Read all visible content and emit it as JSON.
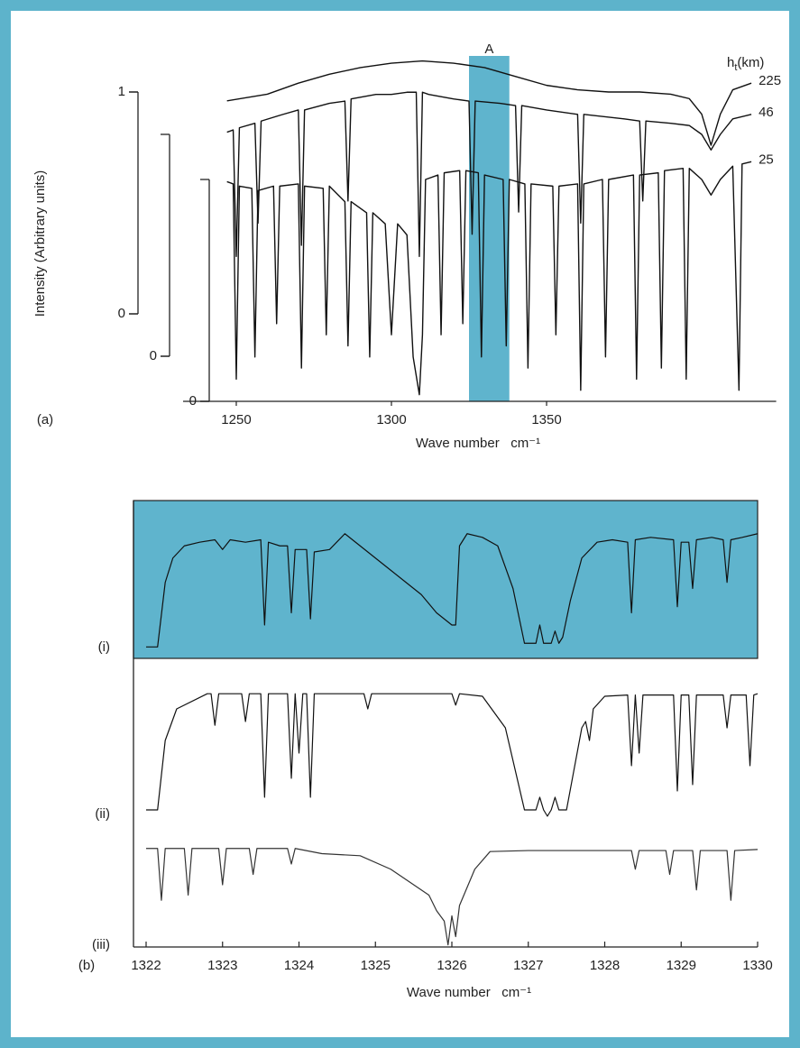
{
  "chart_data": [
    {
      "type": "line",
      "panel_label": "(a)",
      "ylabel": "Intensity (Arbitrary units)",
      "xlabel": "Wave number   cm⁻¹",
      "xlim": [
        1233,
        1424
      ],
      "xticks": [
        1250,
        1300,
        1350
      ],
      "yaxes": [
        {
          "ylim": [
            0,
            1
          ],
          "yticks": [
            0,
            1
          ]
        },
        {
          "ylim": [
            0,
            1
          ],
          "yticks": [
            0
          ]
        },
        {
          "ylim": [
            0,
            1
          ],
          "yticks": [
            0
          ]
        }
      ],
      "highlight": {
        "label": "A",
        "range": [
          1325,
          1338
        ],
        "color": "#5fb4cd"
      },
      "legend_title": {
        "text": "h",
        "sub": "t",
        "unit": "(km)"
      },
      "series": [
        {
          "name": "225",
          "color": "#111111",
          "axis": 0,
          "x": [
            1247,
            1260,
            1270,
            1280,
            1290,
            1300,
            1310,
            1320,
            1330,
            1340,
            1350,
            1360,
            1370,
            1380,
            1390,
            1396,
            1400,
            1403,
            1406,
            1410,
            1416
          ],
          "values": [
            0.96,
            0.99,
            1.04,
            1.08,
            1.11,
            1.13,
            1.14,
            1.13,
            1.11,
            1.07,
            1.03,
            1.01,
            1.0,
            1.0,
            0.99,
            0.97,
            0.9,
            0.76,
            0.9,
            1.01,
            1.04
          ]
        },
        {
          "name": "46",
          "color": "#111111",
          "axis": 1,
          "x": [
            1247,
            1249,
            1250,
            1251,
            1256,
            1257,
            1258,
            1265,
            1270,
            1271,
            1272,
            1280,
            1285,
            1286,
            1287,
            1295,
            1300,
            1305,
            1308,
            1309,
            1310,
            1312,
            1320,
            1325,
            1326,
            1327,
            1335,
            1340,
            1341,
            1342,
            1350,
            1360,
            1361,
            1362,
            1375,
            1380,
            1381,
            1382,
            1390,
            1396,
            1400,
            1403,
            1406,
            1410,
            1416
          ],
          "values": [
            1.01,
            1.02,
            0.45,
            1.03,
            1.05,
            0.6,
            1.06,
            1.09,
            1.11,
            0.5,
            1.11,
            1.14,
            1.15,
            0.7,
            1.16,
            1.18,
            1.18,
            1.19,
            1.19,
            0.45,
            1.19,
            1.18,
            1.16,
            1.15,
            0.55,
            1.15,
            1.14,
            1.13,
            0.65,
            1.13,
            1.11,
            1.09,
            0.6,
            1.09,
            1.07,
            1.06,
            0.7,
            1.06,
            1.05,
            1.04,
            1.0,
            0.93,
            1.0,
            1.07,
            1.09
          ]
        },
        {
          "name": "25",
          "color": "#111111",
          "axis": 2,
          "x": [
            1247,
            1249,
            1250,
            1251,
            1255,
            1256,
            1257,
            1262,
            1263,
            1264,
            1270,
            1271,
            1272,
            1278,
            1279,
            1280,
            1285,
            1286,
            1287,
            1292,
            1293,
            1294,
            1298,
            1300,
            1302,
            1305,
            1307,
            1309,
            1310,
            1311,
            1315,
            1316,
            1317,
            1322,
            1323,
            1324,
            1328,
            1329,
            1330,
            1336,
            1337,
            1338,
            1343,
            1344,
            1345,
            1352,
            1353,
            1354,
            1360,
            1361,
            1362,
            1368,
            1369,
            1370,
            1378,
            1379,
            1380,
            1386,
            1387,
            1388,
            1394,
            1395,
            1396,
            1400,
            1403,
            1406,
            1410,
            1412,
            1413,
            1416
          ],
          "values": [
            0.99,
            0.98,
            0.1,
            0.97,
            0.96,
            0.2,
            0.95,
            0.97,
            0.35,
            0.97,
            0.98,
            0.15,
            0.97,
            0.96,
            0.3,
            0.97,
            0.9,
            0.25,
            0.9,
            0.85,
            0.2,
            0.85,
            0.8,
            0.3,
            0.8,
            0.75,
            0.2,
            0.03,
            0.3,
            1.0,
            1.02,
            0.3,
            1.03,
            1.04,
            0.35,
            1.04,
            1.03,
            0.2,
            1.02,
            1.0,
            0.25,
            1.0,
            0.98,
            0.15,
            0.98,
            0.97,
            0.3,
            0.97,
            0.98,
            0.05,
            0.98,
            1.0,
            0.2,
            1.0,
            1.02,
            0.1,
            1.02,
            1.03,
            0.15,
            1.04,
            1.05,
            0.1,
            1.05,
            1.0,
            0.93,
            1.0,
            1.06,
            0.05,
            1.07,
            1.08
          ]
        }
      ]
    },
    {
      "type": "line",
      "panel_label": "(b)",
      "xlabel": "Wave number   cm⁻¹",
      "xlim": [
        1322,
        1330
      ],
      "xticks": [
        1322,
        1323,
        1324,
        1325,
        1326,
        1327,
        1328,
        1329,
        1330
      ],
      "ylim": [
        0,
        1
      ],
      "series": [
        {
          "name": "(i)",
          "color": "#111111",
          "background": "#5fb4cd",
          "x": [
            1322.0,
            1322.15,
            1322.25,
            1322.35,
            1322.5,
            1322.7,
            1322.9,
            1323.0,
            1323.1,
            1323.3,
            1323.5,
            1323.55,
            1323.6,
            1323.75,
            1323.85,
            1323.9,
            1323.95,
            1324.1,
            1324.15,
            1324.2,
            1324.4,
            1324.6,
            1324.8,
            1325.0,
            1325.2,
            1325.4,
            1325.6,
            1325.8,
            1325.9,
            1326.0,
            1326.05,
            1326.1,
            1326.2,
            1326.4,
            1326.6,
            1326.8,
            1326.95,
            1327.1,
            1327.15,
            1327.2,
            1327.3,
            1327.35,
            1327.4,
            1327.45,
            1327.55,
            1327.7,
            1327.9,
            1328.1,
            1328.3,
            1328.35,
            1328.4,
            1328.6,
            1328.9,
            1328.95,
            1329.0,
            1329.1,
            1329.15,
            1329.2,
            1329.4,
            1329.55,
            1329.6,
            1329.65,
            1329.8,
            1330.0
          ],
          "values": [
            0.02,
            0.02,
            0.55,
            0.75,
            0.85,
            0.88,
            0.9,
            0.82,
            0.9,
            0.88,
            0.9,
            0.2,
            0.88,
            0.85,
            0.85,
            0.3,
            0.82,
            0.82,
            0.25,
            0.8,
            0.82,
            0.95,
            0.85,
            0.75,
            0.65,
            0.55,
            0.45,
            0.3,
            0.25,
            0.2,
            0.2,
            0.85,
            0.95,
            0.92,
            0.85,
            0.5,
            0.05,
            0.05,
            0.2,
            0.05,
            0.05,
            0.15,
            0.05,
            0.1,
            0.4,
            0.75,
            0.88,
            0.9,
            0.88,
            0.3,
            0.9,
            0.92,
            0.9,
            0.35,
            0.88,
            0.88,
            0.5,
            0.9,
            0.92,
            0.9,
            0.55,
            0.9,
            0.92,
            0.95
          ]
        },
        {
          "name": "(ii)",
          "color": "#111111",
          "x": [
            1322.0,
            1322.15,
            1322.25,
            1322.4,
            1322.8,
            1322.85,
            1322.9,
            1322.95,
            1323.25,
            1323.3,
            1323.35,
            1323.5,
            1323.55,
            1323.6,
            1323.85,
            1323.9,
            1323.95,
            1324.0,
            1324.05,
            1324.1,
            1324.15,
            1324.2,
            1324.85,
            1324.9,
            1324.95,
            1326.0,
            1326.05,
            1326.1,
            1326.4,
            1326.7,
            1326.95,
            1327.1,
            1327.15,
            1327.2,
            1327.25,
            1327.3,
            1327.35,
            1327.4,
            1327.5,
            1327.7,
            1327.75,
            1327.8,
            1327.85,
            1328.0,
            1328.3,
            1328.35,
            1328.4,
            1328.45,
            1328.5,
            1328.9,
            1328.95,
            1329.0,
            1329.1,
            1329.15,
            1329.2,
            1329.55,
            1329.6,
            1329.65,
            1329.85,
            1329.9,
            1329.95,
            1330.0
          ],
          "values": [
            0.05,
            0.05,
            0.6,
            0.85,
            0.97,
            0.97,
            0.72,
            0.97,
            0.97,
            0.75,
            0.97,
            0.97,
            0.15,
            0.97,
            0.97,
            0.3,
            0.97,
            0.5,
            0.97,
            0.97,
            0.15,
            0.97,
            0.97,
            0.85,
            0.97,
            0.97,
            0.88,
            0.97,
            0.95,
            0.7,
            0.05,
            0.05,
            0.15,
            0.05,
            0.0,
            0.05,
            0.15,
            0.05,
            0.05,
            0.7,
            0.75,
            0.6,
            0.85,
            0.95,
            0.96,
            0.4,
            0.96,
            0.5,
            0.96,
            0.96,
            0.2,
            0.96,
            0.96,
            0.25,
            0.96,
            0.96,
            0.7,
            0.96,
            0.96,
            0.4,
            0.96,
            0.97
          ]
        },
        {
          "name": "(iii)",
          "color": "#333333",
          "x": [
            1322.0,
            1322.15,
            1322.2,
            1322.25,
            1322.5,
            1322.55,
            1322.6,
            1322.95,
            1323.0,
            1323.05,
            1323.35,
            1323.4,
            1323.45,
            1323.85,
            1323.9,
            1323.95,
            1324.3,
            1324.8,
            1325.2,
            1325.5,
            1325.7,
            1325.8,
            1325.9,
            1325.95,
            1326.0,
            1326.05,
            1326.1,
            1326.3,
            1326.5,
            1327.0,
            1328.35,
            1328.4,
            1328.45,
            1328.8,
            1328.85,
            1328.9,
            1329.15,
            1329.2,
            1329.25,
            1329.6,
            1329.65,
            1329.7,
            1330.0
          ],
          "values": [
            0.95,
            0.95,
            0.45,
            0.95,
            0.95,
            0.5,
            0.95,
            0.95,
            0.6,
            0.95,
            0.95,
            0.7,
            0.95,
            0.95,
            0.8,
            0.95,
            0.9,
            0.88,
            0.75,
            0.6,
            0.5,
            0.35,
            0.25,
            0.02,
            0.3,
            0.1,
            0.4,
            0.75,
            0.92,
            0.93,
            0.93,
            0.75,
            0.93,
            0.93,
            0.7,
            0.93,
            0.93,
            0.55,
            0.93,
            0.93,
            0.45,
            0.93,
            0.94
          ]
        }
      ]
    }
  ]
}
